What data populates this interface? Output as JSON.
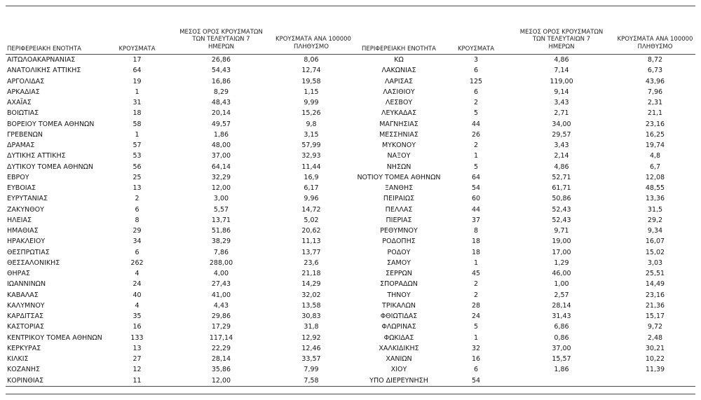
{
  "columns": {
    "region": "ΠΕΡΙΦΕΡΕΙΑΚΗ ΕΝΟΤΗΤΑ",
    "cases": "ΚΡΟΥΣΜΑΤΑ",
    "avg7": [
      "ΜΕΣΟΣ ΟΡΟΣ ΚΡΟΥΣΜΑΤΩΝ",
      "ΤΩΝ ΤΕΛΕΥΤΑΙΩΝ 7",
      "ΗΜΕΡΩΝ"
    ],
    "per100k": [
      "ΚΡΟΥΣΜΑΤΑ ΑΝΑ 100000",
      "ΠΛΗΘΥΣΜΟ"
    ]
  },
  "left_rows": [
    [
      "ΑΙΤΩΛΟΑΚΑΡΝΑΝΙΑΣ",
      "17",
      "26,86",
      "8,06"
    ],
    [
      "ΑΝΑΤΟΛΙΚΗΣ ΑΤΤΙΚΗΣ",
      "64",
      "54,43",
      "12,74"
    ],
    [
      "ΑΡΓΟΛΙΔΑΣ",
      "19",
      "16,86",
      "19,58"
    ],
    [
      "ΑΡΚΑΔΙΑΣ",
      "1",
      "8,29",
      "1,15"
    ],
    [
      "ΑΧΑΪΑΣ",
      "31",
      "48,43",
      "9,99"
    ],
    [
      "ΒΟΙΩΤΙΑΣ",
      "18",
      "20,14",
      "15,26"
    ],
    [
      "ΒΟΡΕΙΟΥ ΤΟΜΕΑ ΑΘΗΝΩΝ",
      "58",
      "49,57",
      "9,8"
    ],
    [
      "ΓΡΕΒΕΝΩΝ",
      "1",
      "1,86",
      "3,15"
    ],
    [
      "ΔΡΑΜΑΣ",
      "57",
      "48,00",
      "57,99"
    ],
    [
      "ΔΥΤΙΚΗΣ ΑΤΤΙΚΗΣ",
      "53",
      "37,00",
      "32,93"
    ],
    [
      "ΔΥΤΙΚΟΥ ΤΟΜΕΑ ΑΘΗΝΩΝ",
      "56",
      "64,14",
      "11,44"
    ],
    [
      "ΕΒΡΟΥ",
      "25",
      "32,29",
      "16,9"
    ],
    [
      "ΕΥΒΟΙΑΣ",
      "13",
      "12,00",
      "6,17"
    ],
    [
      "ΕΥΡΥΤΑΝΙΑΣ",
      "2",
      "3,00",
      "9,96"
    ],
    [
      "ΖΑΚΥΝΘΟΥ",
      "6",
      "5,57",
      "14,72"
    ],
    [
      "ΗΛΕΙΑΣ",
      "8",
      "13,71",
      "5,02"
    ],
    [
      "ΗΜΑΘΙΑΣ",
      "29",
      "51,86",
      "20,62"
    ],
    [
      "ΗΡΑΚΛΕΙΟΥ",
      "34",
      "38,29",
      "11,13"
    ],
    [
      "ΘΕΣΠΡΩΤΙΑΣ",
      "6",
      "7,86",
      "13,77"
    ],
    [
      "ΘΕΣΣΑΛΟΝΙΚΗΣ",
      "262",
      "288,00",
      "23,6"
    ],
    [
      "ΘΗΡΑΣ",
      "4",
      "4,00",
      "21,18"
    ],
    [
      "ΙΩΑΝΝΙΝΩΝ",
      "24",
      "27,43",
      "14,29"
    ],
    [
      "ΚΑΒΑΛΑΣ",
      "40",
      "41,00",
      "32,02"
    ],
    [
      "ΚΑΛΥΜΝΟΥ",
      "4",
      "4,43",
      "13,58"
    ],
    [
      "ΚΑΡΔΙΤΣΑΣ",
      "35",
      "29,86",
      "30,83"
    ],
    [
      "ΚΑΣΤΟΡΙΑΣ",
      "16",
      "17,29",
      "31,8"
    ],
    [
      "ΚΕΝΤΡΙΚΟΥ ΤΟΜΕΑ ΑΘΗΝΩΝ",
      "133",
      "117,14",
      "12,92"
    ],
    [
      "ΚΕΡΚΥΡΑΣ",
      "13",
      "22,29",
      "12,46"
    ],
    [
      "ΚΙΛΚΙΣ",
      "27",
      "28,14",
      "33,57"
    ],
    [
      "ΚΟΖΑΝΗΣ",
      "12",
      "35,86",
      "7,99"
    ],
    [
      "ΚΟΡΙΝΘΙΑΣ",
      "11",
      "12,00",
      "7,58"
    ]
  ],
  "right_rows": [
    [
      "ΚΩ",
      "3",
      "4,86",
      "8,72"
    ],
    [
      "ΛΑΚΩΝΙΑΣ",
      "6",
      "7,14",
      "6,73"
    ],
    [
      "ΛΑΡΙΣΑΣ",
      "125",
      "119,00",
      "43,96"
    ],
    [
      "ΛΑΣΙΘΙΟΥ",
      "6",
      "9,14",
      "7,96"
    ],
    [
      "ΛΕΣΒΟΥ",
      "2",
      "3,43",
      "2,31"
    ],
    [
      "ΛΕΥΚΑΔΑΣ",
      "5",
      "2,71",
      "21,1"
    ],
    [
      "ΜΑΓΝΗΣΙΑΣ",
      "44",
      "34,00",
      "23,16"
    ],
    [
      "ΜΕΣΣΗΝΙΑΣ",
      "26",
      "29,57",
      "16,25"
    ],
    [
      "ΜΥΚΟΝΟΥ",
      "2",
      "3,43",
      "19,74"
    ],
    [
      "ΝΑΞΟΥ",
      "1",
      "2,14",
      "4,8"
    ],
    [
      "ΝΗΣΩΝ",
      "5",
      "4,86",
      "6,7"
    ],
    [
      "ΝΟΤΙΟΥ ΤΟΜΕΑ ΑΘΗΝΩΝ",
      "64",
      "52,71",
      "12,08"
    ],
    [
      "ΞΑΝΘΗΣ",
      "54",
      "61,71",
      "48,55"
    ],
    [
      "ΠΕΙΡΑΙΩΣ",
      "60",
      "50,86",
      "13,36"
    ],
    [
      "ΠΕΛΛΑΣ",
      "44",
      "52,43",
      "31,5"
    ],
    [
      "ΠΙΕΡΙΑΣ",
      "37",
      "52,43",
      "29,2"
    ],
    [
      "ΡΕΘΥΜΝΟΥ",
      "8",
      "9,71",
      "9,34"
    ],
    [
      "ΡΟΔΟΠΗΣ",
      "18",
      "19,00",
      "16,07"
    ],
    [
      "ΡΟΔΟΥ",
      "18",
      "17,00",
      "15,02"
    ],
    [
      "ΣΑΜΟΥ",
      "1",
      "1,29",
      "3,03"
    ],
    [
      "ΣΕΡΡΩΝ",
      "45",
      "46,00",
      "25,51"
    ],
    [
      "ΣΠΟΡΑΔΩΝ",
      "2",
      "1,00",
      "14,49"
    ],
    [
      "ΤΗΝΟΥ",
      "2",
      "2,57",
      "23,16"
    ],
    [
      "ΤΡΙΚΑΛΩΝ",
      "28",
      "28,14",
      "21,36"
    ],
    [
      "ΦΘΙΩΤΙΔΑΣ",
      "24",
      "31,43",
      "15,17"
    ],
    [
      "ΦΛΩΡΙΝΑΣ",
      "5",
      "6,86",
      "9,72"
    ],
    [
      "ΦΩΚΙΔΑΣ",
      "1",
      "0,86",
      "2,48"
    ],
    [
      "ΧΑΛΚΙΔΙΚΗΣ",
      "32",
      "37,00",
      "30,21"
    ],
    [
      "ΧΑΝΙΩΝ",
      "16",
      "15,57",
      "10,22"
    ],
    [
      "ΧΙΟΥ",
      "6",
      "1,86",
      "11,39"
    ],
    [
      "ΥΠΟ ΔΙΕΡΕΥΝΗΣΗ",
      "54",
      "",
      ""
    ]
  ]
}
